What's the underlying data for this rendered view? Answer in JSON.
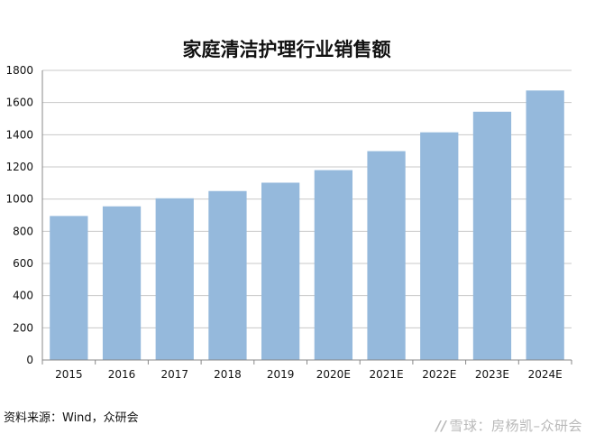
{
  "chart_data": {
    "type": "bar",
    "title": "家庭清洁护理行业销售额",
    "categories": [
      "2015",
      "2016",
      "2017",
      "2018",
      "2019",
      "2020E",
      "2021E",
      "2022E",
      "2023E",
      "2024E"
    ],
    "values": [
      895,
      955,
      1005,
      1050,
      1102,
      1180,
      1298,
      1415,
      1543,
      1675
    ],
    "ylim": [
      0,
      1800
    ],
    "yticks": [
      0,
      200,
      400,
      600,
      800,
      1000,
      1200,
      1400,
      1600,
      1800
    ],
    "xlabel": "",
    "ylabel": "",
    "grid": true,
    "bar_color": "#95B9DC",
    "grid_color": "#C8C8C8"
  },
  "footer": {
    "source": "资料来源：Wind，众研会",
    "watermark_logo": "//",
    "watermark_text": "雪球：房杨凯–众研会"
  }
}
